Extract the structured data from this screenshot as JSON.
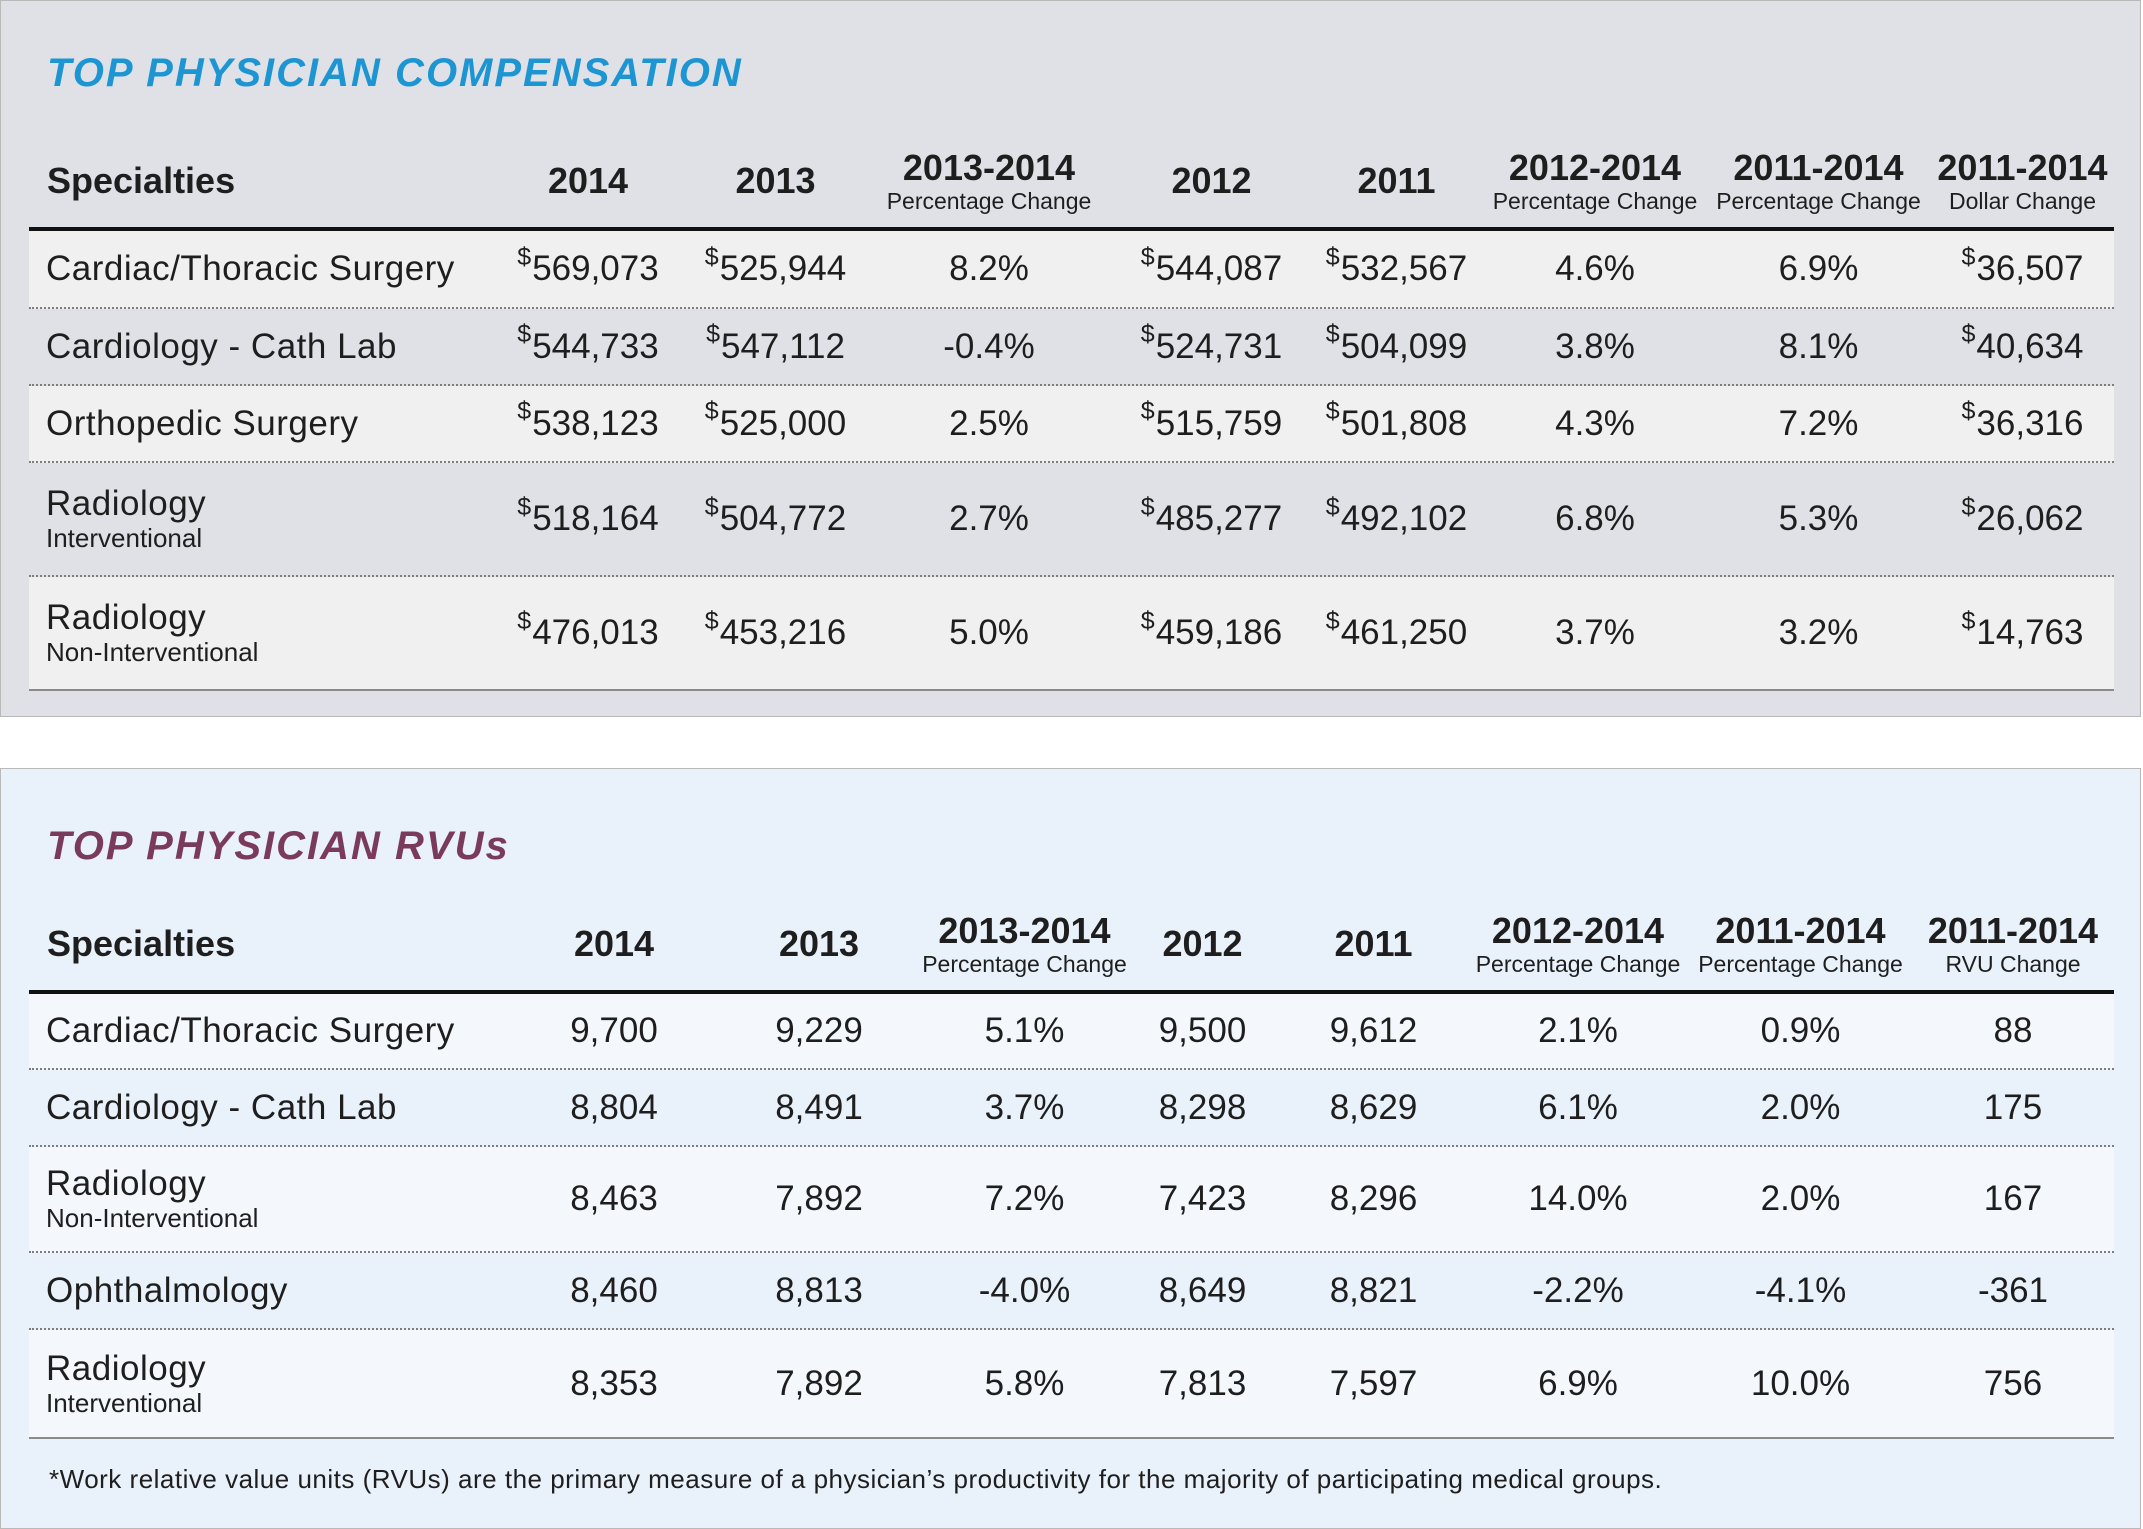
{
  "compensation": {
    "title": "TOP PHYSICIAN COMPENSATION",
    "headers": [
      {
        "main": "Specialties",
        "sub": ""
      },
      {
        "main": "2014",
        "sub": ""
      },
      {
        "main": "2013",
        "sub": ""
      },
      {
        "main": "2013-2014",
        "sub": "Percentage Change"
      },
      {
        "main": "2012",
        "sub": ""
      },
      {
        "main": "2011",
        "sub": ""
      },
      {
        "main": "2012-2014",
        "sub": "Percentage Change"
      },
      {
        "main": "2011-2014",
        "sub": "Percentage Change"
      },
      {
        "main": "2011-2014",
        "sub": "Dollar Change"
      }
    ],
    "currency_symbol": "$",
    "rows": [
      {
        "specialty": "Cardiac/Thoracic Surgery",
        "subtitle": "",
        "cells": [
          {
            "cur": true,
            "v": "569,073"
          },
          {
            "cur": true,
            "v": "525,944"
          },
          {
            "cur": false,
            "v": "8.2%"
          },
          {
            "cur": true,
            "v": "544,087"
          },
          {
            "cur": true,
            "v": "532,567"
          },
          {
            "cur": false,
            "v": "4.6%"
          },
          {
            "cur": false,
            "v": "6.9%"
          },
          {
            "cur": true,
            "v": "36,507"
          }
        ]
      },
      {
        "specialty": "Cardiology - Cath Lab",
        "subtitle": "",
        "cells": [
          {
            "cur": true,
            "v": "544,733"
          },
          {
            "cur": true,
            "v": "547,112"
          },
          {
            "cur": false,
            "v": "-0.4%"
          },
          {
            "cur": true,
            "v": "524,731"
          },
          {
            "cur": true,
            "v": "504,099"
          },
          {
            "cur": false,
            "v": "3.8%"
          },
          {
            "cur": false,
            "v": "8.1%"
          },
          {
            "cur": true,
            "v": "40,634"
          }
        ]
      },
      {
        "specialty": "Orthopedic Surgery",
        "subtitle": "",
        "cells": [
          {
            "cur": true,
            "v": "538,123"
          },
          {
            "cur": true,
            "v": "525,000"
          },
          {
            "cur": false,
            "v": "2.5%"
          },
          {
            "cur": true,
            "v": "515,759"
          },
          {
            "cur": true,
            "v": "501,808"
          },
          {
            "cur": false,
            "v": "4.3%"
          },
          {
            "cur": false,
            "v": "7.2%"
          },
          {
            "cur": true,
            "v": "36,316"
          }
        ]
      },
      {
        "specialty": "Radiology",
        "subtitle": "Interventional",
        "cells": [
          {
            "cur": true,
            "v": "518,164"
          },
          {
            "cur": true,
            "v": "504,772"
          },
          {
            "cur": false,
            "v": "2.7%"
          },
          {
            "cur": true,
            "v": "485,277"
          },
          {
            "cur": true,
            "v": "492,102"
          },
          {
            "cur": false,
            "v": "6.8%"
          },
          {
            "cur": false,
            "v": "5.3%"
          },
          {
            "cur": true,
            "v": "26,062"
          }
        ]
      },
      {
        "specialty": "Radiology",
        "subtitle": "Non-Interventional",
        "cells": [
          {
            "cur": true,
            "v": "476,013"
          },
          {
            "cur": true,
            "v": "453,216"
          },
          {
            "cur": false,
            "v": "5.0%"
          },
          {
            "cur": true,
            "v": "459,186"
          },
          {
            "cur": true,
            "v": "461,250"
          },
          {
            "cur": false,
            "v": "3.7%"
          },
          {
            "cur": false,
            "v": "3.2%"
          },
          {
            "cur": true,
            "v": "14,763"
          }
        ]
      }
    ]
  },
  "rvus": {
    "title": "TOP PHYSICIAN RVUs",
    "headers": [
      {
        "main": "Specialties",
        "sub": ""
      },
      {
        "main": "2014",
        "sub": ""
      },
      {
        "main": "2013",
        "sub": ""
      },
      {
        "main": "2013-2014",
        "sub": "Percentage Change"
      },
      {
        "main": "2012",
        "sub": ""
      },
      {
        "main": "2011",
        "sub": ""
      },
      {
        "main": "2012-2014",
        "sub": "Percentage Change"
      },
      {
        "main": "2011-2014",
        "sub": "Percentage Change"
      },
      {
        "main": "2011-2014",
        "sub": "RVU Change"
      }
    ],
    "rows": [
      {
        "specialty": "Cardiac/Thoracic Surgery",
        "subtitle": "",
        "cells": [
          {
            "cur": false,
            "v": "9,700"
          },
          {
            "cur": false,
            "v": "9,229"
          },
          {
            "cur": false,
            "v": "5.1%"
          },
          {
            "cur": false,
            "v": "9,500"
          },
          {
            "cur": false,
            "v": "9,612"
          },
          {
            "cur": false,
            "v": "2.1%"
          },
          {
            "cur": false,
            "v": "0.9%"
          },
          {
            "cur": false,
            "v": "88"
          }
        ]
      },
      {
        "specialty": "Cardiology - Cath Lab",
        "subtitle": "",
        "cells": [
          {
            "cur": false,
            "v": "8,804"
          },
          {
            "cur": false,
            "v": "8,491"
          },
          {
            "cur": false,
            "v": "3.7%"
          },
          {
            "cur": false,
            "v": "8,298"
          },
          {
            "cur": false,
            "v": "8,629"
          },
          {
            "cur": false,
            "v": "6.1%"
          },
          {
            "cur": false,
            "v": "2.0%"
          },
          {
            "cur": false,
            "v": "175"
          }
        ]
      },
      {
        "specialty": "Radiology",
        "subtitle": "Non-Interventional",
        "cells": [
          {
            "cur": false,
            "v": "8,463"
          },
          {
            "cur": false,
            "v": "7,892"
          },
          {
            "cur": false,
            "v": "7.2%"
          },
          {
            "cur": false,
            "v": "7,423"
          },
          {
            "cur": false,
            "v": "8,296"
          },
          {
            "cur": false,
            "v": "14.0%"
          },
          {
            "cur": false,
            "v": "2.0%"
          },
          {
            "cur": false,
            "v": "167"
          }
        ]
      },
      {
        "specialty": "Ophthalmology",
        "subtitle": "",
        "cells": [
          {
            "cur": false,
            "v": "8,460"
          },
          {
            "cur": false,
            "v": "8,813"
          },
          {
            "cur": false,
            "v": "-4.0%"
          },
          {
            "cur": false,
            "v": "8,649"
          },
          {
            "cur": false,
            "v": "8,821"
          },
          {
            "cur": false,
            "v": "-2.2%"
          },
          {
            "cur": false,
            "v": "-4.1%"
          },
          {
            "cur": false,
            "v": "-361"
          }
        ]
      },
      {
        "specialty": "Radiology",
        "subtitle": "Interventional",
        "cells": [
          {
            "cur": false,
            "v": "8,353"
          },
          {
            "cur": false,
            "v": "7,892"
          },
          {
            "cur": false,
            "v": "5.8%"
          },
          {
            "cur": false,
            "v": "7,813"
          },
          {
            "cur": false,
            "v": "7,597"
          },
          {
            "cur": false,
            "v": "6.9%"
          },
          {
            "cur": false,
            "v": "10.0%"
          },
          {
            "cur": false,
            "v": "756"
          }
        ]
      }
    ],
    "footnote": "*Work relative value units (RVUs) are the primary measure of a physician’s productivity for the majority of participating medical groups."
  }
}
